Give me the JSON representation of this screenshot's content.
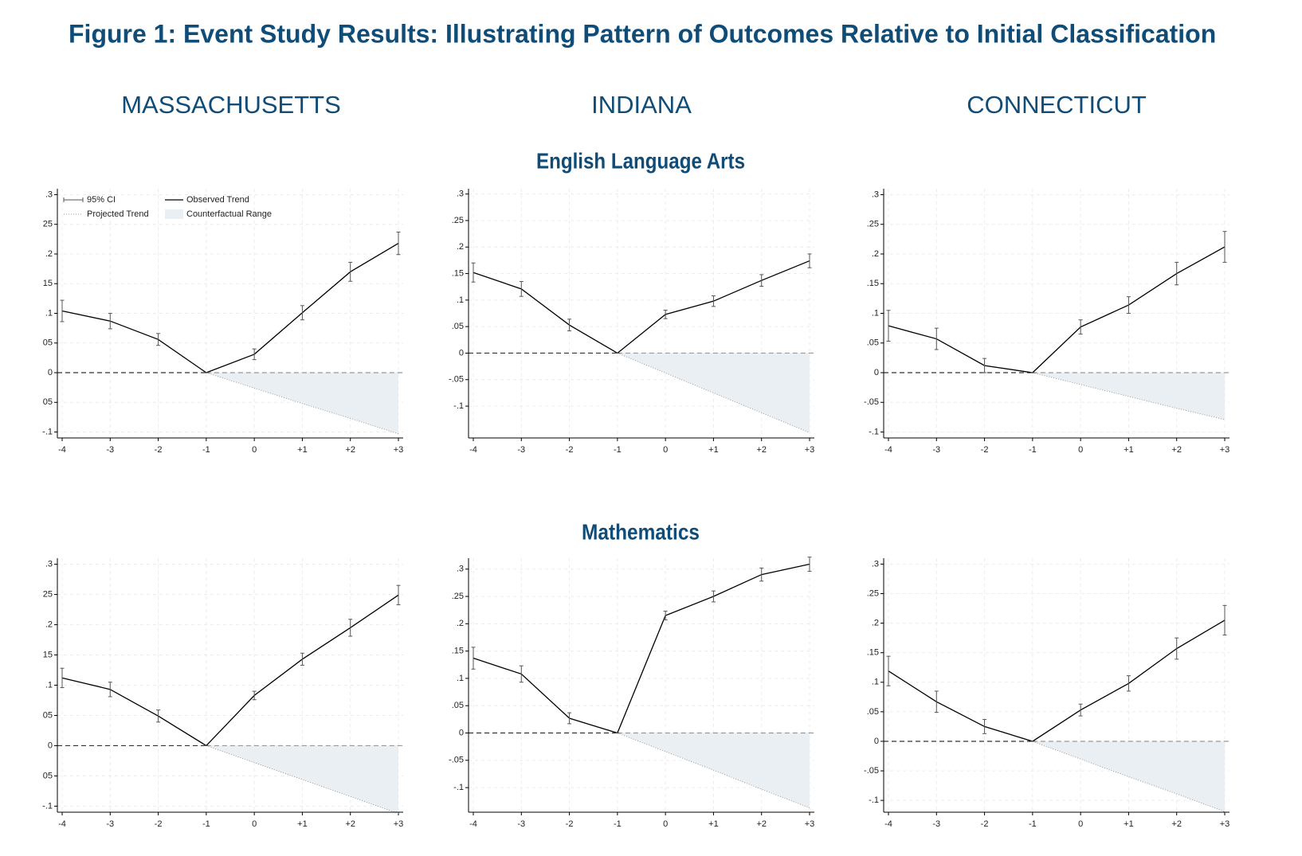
{
  "title": "Figure 1: Event Study Results: Illustrating Pattern of Outcomes Relative to Initial Classification",
  "states": [
    "MASSACHUSETTS",
    "INDIANA",
    "CONNECTICUT"
  ],
  "subjects": [
    "English Language Arts",
    "Mathematics"
  ],
  "legend": {
    "ci": "95% CI",
    "observed": "Observed Trend",
    "projected": "Projected Trend",
    "range": "Counterfactual Range"
  },
  "chart_data": [
    {
      "type": "line",
      "categories": [
        "-4",
        "-3",
        "-2",
        "-1",
        "0",
        "+1",
        "+2",
        "+3"
      ],
      "series": [
        {
          "color": "#000000",
          "values": [
            0.104,
            0.087,
            0.056,
            0,
            0.031,
            0.101,
            0.17,
            0.218
          ],
          "errors": [
            0.018,
            0.013,
            0.01,
            0,
            0.009,
            0.012,
            0.016,
            0.019
          ]
        },
        {
          "color": "#9a9a9a",
          "values": [
            null,
            null,
            null,
            0,
            -0.026,
            -0.052,
            -0.077,
            -0.103
          ]
        }
      ],
      "ylim": [
        -0.11,
        0.31
      ],
      "yticks": [
        {
          "value": 0.3,
          "label": ".3"
        },
        {
          "value": 0.25,
          "label": "25"
        },
        {
          "value": 0.2,
          "label": ".2"
        },
        {
          "value": 0.15,
          "label": "15"
        },
        {
          "value": 0.1,
          "label": ".1"
        },
        {
          "value": 0.05,
          "label": "05"
        },
        0,
        {
          "value": -0.05,
          "label": "05"
        },
        {
          "value": -0.1,
          "label": "-.1"
        }
      ]
    },
    {
      "type": "line",
      "categories": [
        "-4",
        "-3",
        "-2",
        "-1",
        "0",
        "+1",
        "+2",
        "+3"
      ],
      "series": [
        {
          "color": "#000000",
          "values": [
            0.152,
            0.121,
            0.053,
            0,
            0.073,
            0.098,
            0.137,
            0.174
          ],
          "errors": [
            0.018,
            0.014,
            0.011,
            0,
            0.008,
            0.01,
            0.011,
            0.013
          ]
        },
        {
          "color": "#9a9a9a",
          "values": [
            null,
            null,
            null,
            0,
            -0.0375,
            -0.075,
            -0.1125,
            -0.15
          ]
        }
      ],
      "ylim": [
        -0.16,
        0.31
      ],
      "yticks": [
        {
          "value": 0.3,
          "label": ".3"
        },
        {
          "value": 0.25,
          "label": ".25"
        },
        {
          "value": 0.2,
          "label": ".2"
        },
        {
          "value": 0.15,
          "label": ".15"
        },
        {
          "value": 0.1,
          "label": ".1"
        },
        {
          "value": 0.05,
          "label": ".05"
        },
        0,
        {
          "value": -0.05,
          "label": "-.05"
        },
        {
          "value": -0.1,
          "label": "-.1"
        }
      ]
    },
    {
      "type": "line",
      "categories": [
        "-4",
        "-3",
        "-2",
        "-1",
        "0",
        "+1",
        "+2",
        "+3"
      ],
      "series": [
        {
          "color": "#000000",
          "values": [
            0.079,
            0.057,
            0.012,
            0,
            0.077,
            0.114,
            0.167,
            0.212
          ],
          "errors": [
            0.026,
            0.018,
            0.012,
            0,
            0.012,
            0.014,
            0.019,
            0.026
          ]
        },
        {
          "color": "#9a9a9a",
          "values": [
            null,
            null,
            null,
            0,
            -0.02,
            -0.04,
            -0.06,
            -0.079
          ]
        }
      ],
      "ylim": [
        -0.11,
        0.31
      ],
      "yticks": [
        {
          "value": 0.3,
          "label": ".3"
        },
        {
          "value": 0.25,
          "label": ".25"
        },
        {
          "value": 0.2,
          "label": ".2"
        },
        {
          "value": 0.15,
          "label": ".15"
        },
        {
          "value": 0.1,
          "label": ".1"
        },
        {
          "value": 0.05,
          "label": ".05"
        },
        0,
        {
          "value": -0.05,
          "label": "-.05"
        },
        {
          "value": -0.1,
          "label": "-.1"
        }
      ]
    },
    {
      "type": "line",
      "categories": [
        "-4",
        "-3",
        "-2",
        "-1",
        "0",
        "+1",
        "+2",
        "+3"
      ],
      "series": [
        {
          "color": "#000000",
          "values": [
            0.112,
            0.093,
            0.049,
            0,
            0.083,
            0.143,
            0.195,
            0.249
          ],
          "errors": [
            0.016,
            0.012,
            0.01,
            0,
            0.007,
            0.01,
            0.014,
            0.016
          ]
        },
        {
          "color": "#9a9a9a",
          "values": [
            null,
            null,
            null,
            0,
            -0.028,
            -0.056,
            -0.084,
            -0.112
          ]
        }
      ],
      "ylim": [
        -0.11,
        0.31
      ],
      "yticks": [
        {
          "value": 0.3,
          "label": ".3"
        },
        {
          "value": 0.25,
          "label": "25"
        },
        {
          "value": 0.2,
          "label": ".2"
        },
        {
          "value": 0.15,
          "label": "15"
        },
        {
          "value": 0.1,
          "label": ".1"
        },
        {
          "value": 0.05,
          "label": "05"
        },
        0,
        {
          "value": -0.05,
          "label": "05"
        },
        {
          "value": -0.1,
          "label": "-.1"
        }
      ]
    },
    {
      "type": "line",
      "categories": [
        "-4",
        "-3",
        "-2",
        "-1",
        "0",
        "+1",
        "+2",
        "+3"
      ],
      "series": [
        {
          "color": "#000000",
          "values": [
            0.137,
            0.108,
            0.027,
            0,
            0.215,
            0.25,
            0.29,
            0.309
          ],
          "errors": [
            0.02,
            0.015,
            0.01,
            0,
            0.008,
            0.01,
            0.012,
            0.013
          ]
        },
        {
          "color": "#9a9a9a",
          "values": [
            null,
            null,
            null,
            0,
            -0.034,
            -0.068,
            -0.103,
            -0.137
          ]
        }
      ],
      "ylim": [
        -0.145,
        0.32
      ],
      "yticks": [
        {
          "value": 0.3,
          "label": ".3"
        },
        {
          "value": 0.25,
          "label": ".25"
        },
        {
          "value": 0.2,
          "label": ".2"
        },
        {
          "value": 0.15,
          "label": ".15"
        },
        {
          "value": 0.1,
          "label": ".1"
        },
        {
          "value": 0.05,
          "label": ".05"
        },
        0,
        {
          "value": -0.05,
          "label": "-.05"
        },
        {
          "value": -0.1,
          "label": "-.1"
        }
      ]
    },
    {
      "type": "line",
      "categories": [
        "-4",
        "-3",
        "-2",
        "-1",
        "0",
        "+1",
        "+2",
        "+3"
      ],
      "series": [
        {
          "color": "#000000",
          "values": [
            0.119,
            0.067,
            0.025,
            0,
            0.053,
            0.098,
            0.157,
            0.205
          ],
          "errors": [
            0.025,
            0.018,
            0.012,
            0,
            0.01,
            0.013,
            0.018,
            0.025
          ]
        },
        {
          "color": "#9a9a9a",
          "values": [
            null,
            null,
            null,
            0,
            -0.03,
            -0.06,
            -0.089,
            -0.119
          ]
        }
      ],
      "ylim": [
        -0.12,
        0.31
      ],
      "yticks": [
        {
          "value": 0.3,
          "label": ".3"
        },
        {
          "value": 0.25,
          "label": ".25"
        },
        {
          "value": 0.2,
          "label": ".2"
        },
        {
          "value": 0.15,
          "label": ".15"
        },
        {
          "value": 0.1,
          "label": ".1"
        },
        {
          "value": 0.05,
          "label": ".05"
        },
        0,
        {
          "value": -0.05,
          "label": "-.05"
        },
        {
          "value": -0.1,
          "label": "-.1"
        }
      ]
    }
  ]
}
